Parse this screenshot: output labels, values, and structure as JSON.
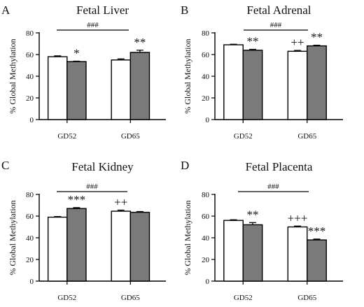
{
  "chart_data": [
    {
      "panel_letter": "A",
      "type": "bar",
      "title": "Fetal Liver",
      "ylabel": "% Global Methylation",
      "xlabel": "",
      "ylim": [
        0,
        80
      ],
      "yticks": [
        "0",
        "20",
        "40",
        "60",
        "80"
      ],
      "categories": [
        "GD52",
        "GD65"
      ],
      "series": [
        {
          "fill": "#ffffff",
          "values": [
            58,
            55
          ],
          "errors": [
            0.8,
            1.0
          ],
          "labels": [
            "",
            ""
          ]
        },
        {
          "fill": "#7a7a7a",
          "values": [
            53.5,
            62
          ],
          "errors": [
            0.4,
            2.0
          ],
          "labels": [
            "*",
            "**"
          ]
        }
      ],
      "comparison_label": "###"
    },
    {
      "panel_letter": "B",
      "type": "bar",
      "title": "Fetal Adrenal",
      "ylabel": "% Global Methylation",
      "xlabel": "",
      "ylim": [
        0,
        80
      ],
      "yticks": [
        "0",
        "20",
        "40",
        "60",
        "80"
      ],
      "categories": [
        "GD52",
        "GD65"
      ],
      "series": [
        {
          "fill": "#ffffff",
          "values": [
            69,
            63
          ],
          "errors": [
            0.5,
            0.8
          ],
          "labels": [
            "",
            "++"
          ]
        },
        {
          "fill": "#7a7a7a",
          "values": [
            64,
            68
          ],
          "errors": [
            0.8,
            0.6
          ],
          "labels": [
            "**",
            "**"
          ]
        }
      ],
      "comparison_label": "###"
    },
    {
      "panel_letter": "C",
      "type": "bar",
      "title": "Fetal Kidney",
      "ylabel": "% Global Methylation",
      "xlabel": "",
      "ylim": [
        0,
        80
      ],
      "yticks": [
        "0",
        "20",
        "40",
        "60",
        "80"
      ],
      "categories": [
        "GD52",
        "GD65"
      ],
      "series": [
        {
          "fill": "#ffffff",
          "values": [
            59,
            64.5
          ],
          "errors": [
            0.6,
            1.0
          ],
          "labels": [
            "",
            "++"
          ]
        },
        {
          "fill": "#7a7a7a",
          "values": [
            67,
            63.5
          ],
          "errors": [
            0.8,
            0.7
          ],
          "labels": [
            "***",
            ""
          ]
        }
      ],
      "comparison_label": "###"
    },
    {
      "panel_letter": "D",
      "type": "bar",
      "title": "Fetal Placenta",
      "ylabel": "% Global Methylation",
      "xlabel": "",
      "ylim": [
        0,
        80
      ],
      "yticks": [
        "0",
        "20",
        "40",
        "60",
        "80"
      ],
      "categories": [
        "GD52",
        "GD65"
      ],
      "series": [
        {
          "fill": "#ffffff",
          "values": [
            56,
            50
          ],
          "errors": [
            0.6,
            0.8
          ],
          "labels": [
            "",
            "+++"
          ]
        },
        {
          "fill": "#7a7a7a",
          "values": [
            52,
            38
          ],
          "errors": [
            2.0,
            0.8
          ],
          "labels": [
            "**",
            "***"
          ]
        }
      ],
      "comparison_label": "###"
    }
  ]
}
